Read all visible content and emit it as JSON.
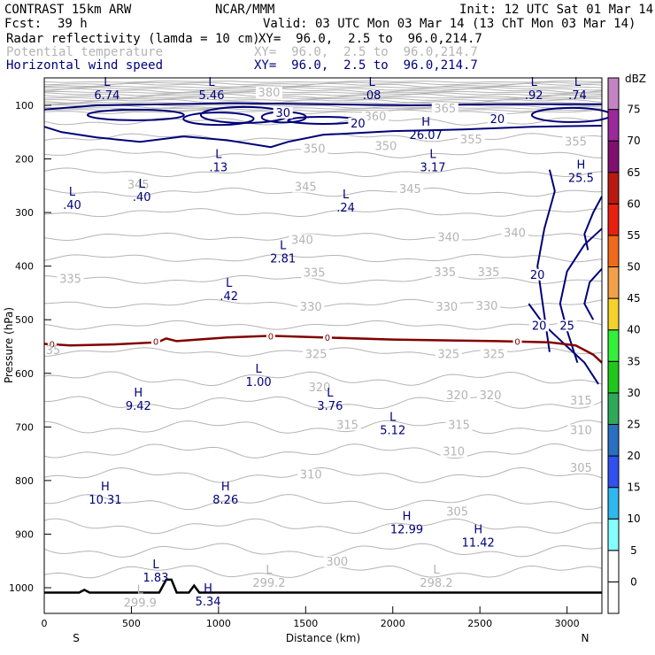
{
  "header": {
    "model": "CONTRAST 15km ARW",
    "org": "NCAR/MMM",
    "init": "Init: 12 UTC Sat 01 Mar 14",
    "fcst_label": "Fcst:",
    "fcst_value": "39 h",
    "valid": "Valid: 03 UTC Mon 03 Mar 14 (13 ChT Mon 03 Mar 14)",
    "fields": [
      {
        "name": "Radar reflectivity (lamda = 10 cm)",
        "xy": "XY=  96.0,  2.5 to  96.0,214.7"
      },
      {
        "name": "Potential temperature",
        "xy": "XY=  96.0,  2.5 to  96.0,214.7"
      },
      {
        "name": "Horizontal wind speed",
        "xy": "XY=  96.0,  2.5 to  96.0,214.7"
      }
    ]
  },
  "colors": {
    "theta": "#b4b4b4",
    "wind": "#00007a",
    "freezing": "#800000",
    "terrain": "#000000"
  },
  "chart_data": {
    "type": "cross-section",
    "xlabel": "Distance (km)",
    "ylabel": "Pressure (hPa)",
    "xlim": [
      0,
      3200
    ],
    "ylim": [
      1050,
      50
    ],
    "xticks": [
      0,
      500,
      1000,
      1500,
      2000,
      2500,
      3000
    ],
    "yticks": [
      100,
      200,
      300,
      400,
      500,
      600,
      700,
      800,
      900,
      1000
    ],
    "x_ends": {
      "left": "S",
      "right": "N"
    },
    "theta_levels": [
      {
        "label": "380",
        "x": 1290,
        "p": 80
      },
      {
        "label": "365",
        "x": 2300,
        "p": 110
      },
      {
        "label": "360",
        "x": 1900,
        "p": 125
      },
      {
        "label": "355",
        "x": 2450,
        "p": 168
      },
      {
        "label": "355",
        "x": 3050,
        "p": 172
      },
      {
        "label": "350",
        "x": 1550,
        "p": 185
      },
      {
        "label": "350",
        "x": 1960,
        "p": 180
      },
      {
        "label": "345",
        "x": 540,
        "p": 252
      },
      {
        "label": "345",
        "x": 1500,
        "p": 256
      },
      {
        "label": "345",
        "x": 2100,
        "p": 260
      },
      {
        "label": "340",
        "x": 1480,
        "p": 355
      },
      {
        "label": "340",
        "x": 2320,
        "p": 350
      },
      {
        "label": "340",
        "x": 2700,
        "p": 342
      },
      {
        "label": "335",
        "x": 150,
        "p": 428
      },
      {
        "label": "335",
        "x": 1550,
        "p": 416
      },
      {
        "label": "335",
        "x": 2300,
        "p": 415
      },
      {
        "label": "335",
        "x": 2550,
        "p": 415
      },
      {
        "label": "330",
        "x": 1530,
        "p": 480
      },
      {
        "label": "330",
        "x": 2310,
        "p": 480
      },
      {
        "label": "330",
        "x": 2540,
        "p": 478
      },
      {
        "label": "325",
        "x": 1560,
        "p": 568
      },
      {
        "label": "325",
        "x": 2320,
        "p": 568
      },
      {
        "label": "325",
        "x": 2580,
        "p": 568
      },
      {
        "label": "320",
        "x": 1580,
        "p": 630
      },
      {
        "label": "320",
        "x": 2370,
        "p": 645
      },
      {
        "label": "320",
        "x": 2560,
        "p": 645
      },
      {
        "label": "315",
        "x": 1740,
        "p": 700
      },
      {
        "label": "315",
        "x": 2380,
        "p": 700
      },
      {
        "label": "315",
        "x": 3080,
        "p": 655
      },
      {
        "label": "310",
        "x": 1530,
        "p": 793
      },
      {
        "label": "310",
        "x": 2350,
        "p": 750
      },
      {
        "label": "310",
        "x": 3080,
        "p": 710
      },
      {
        "label": "305",
        "x": 2370,
        "p": 862
      },
      {
        "label": "305",
        "x": 3080,
        "p": 780
      },
      {
        "label": "300",
        "x": 1680,
        "p": 955
      }
    ],
    "wind_labels": [
      {
        "label": "30",
        "x": 1370,
        "p": 118
      },
      {
        "label": "20",
        "x": 1800,
        "p": 138
      },
      {
        "label": "20",
        "x": 2600,
        "p": 130
      },
      {
        "label": "20",
        "x": 2830,
        "p": 420
      },
      {
        "label": "20",
        "x": 2840,
        "p": 515
      },
      {
        "label": "25",
        "x": 3000,
        "p": 515
      }
    ],
    "extrema": [
      {
        "kind": "L",
        "value": "6.74",
        "x": 360,
        "p": 65
      },
      {
        "kind": "L",
        "value": "5.46",
        "x": 960,
        "p": 65
      },
      {
        "kind": "L",
        "value": ".08",
        "x": 1880,
        "p": 65
      },
      {
        "kind": "L",
        "value": ".92",
        "x": 2810,
        "p": 65
      },
      {
        "kind": "L",
        "value": ".74",
        "x": 3060,
        "p": 65
      },
      {
        "kind": "H",
        "value": "26.07",
        "x": 2190,
        "p": 140
      },
      {
        "kind": "L",
        "value": ".13",
        "x": 1000,
        "p": 200
      },
      {
        "kind": "L",
        "value": "3.17",
        "x": 2230,
        "p": 200
      },
      {
        "kind": "H",
        "value": "25.5",
        "x": 3080,
        "p": 220
      },
      {
        "kind": "L",
        "value": ".40",
        "x": 160,
        "p": 270
      },
      {
        "kind": "L",
        "value": ".40",
        "x": 560,
        "p": 255
      },
      {
        "kind": "L",
        "value": ".24",
        "x": 1730,
        "p": 275
      },
      {
        "kind": "L",
        "value": "2.81",
        "x": 1370,
        "p": 370
      },
      {
        "kind": "L",
        "value": ".42",
        "x": 1060,
        "p": 440
      },
      {
        "kind": "L",
        "value": "1.00",
        "x": 1230,
        "p": 600
      },
      {
        "kind": "H",
        "value": "9.42",
        "x": 540,
        "p": 645
      },
      {
        "kind": "L",
        "value": "3.76",
        "x": 1640,
        "p": 645
      },
      {
        "kind": "L",
        "value": "5.12",
        "x": 2000,
        "p": 690
      },
      {
        "kind": "H",
        "value": "10.31",
        "x": 350,
        "p": 820
      },
      {
        "kind": "H",
        "value": "8.26",
        "x": 1040,
        "p": 820
      },
      {
        "kind": "H",
        "value": "12.99",
        "x": 2080,
        "p": 875
      },
      {
        "kind": "H",
        "value": "11.42",
        "x": 2490,
        "p": 900
      },
      {
        "kind": "L",
        "value": "1.83",
        "x": 640,
        "p": 965
      },
      {
        "kind": "H",
        "value": "5.34",
        "x": 940,
        "p": 1010
      },
      {
        "kind": "L",
        "value": "299.2",
        "x": 1290,
        "p": 975
      },
      {
        "kind": "L",
        "value": "298.2",
        "x": 2250,
        "p": 975
      },
      {
        "kind": "L",
        "value": "299.9",
        "x": 550,
        "p": 1012
      }
    ],
    "freezing_line": {
      "label": "0",
      "points": [
        [
          0,
          545
        ],
        [
          150,
          548
        ],
        [
          400,
          546
        ],
        [
          650,
          542
        ],
        [
          700,
          535
        ],
        [
          760,
          540
        ],
        [
          1050,
          533
        ],
        [
          1300,
          530
        ],
        [
          1600,
          533
        ],
        [
          2000,
          537
        ],
        [
          2600,
          540
        ],
        [
          2900,
          542
        ],
        [
          3050,
          548
        ],
        [
          3150,
          565
        ],
        [
          3200,
          580
        ]
      ],
      "label_positions": [
        [
          45,
          545
        ],
        [
          640,
          540
        ],
        [
          1300,
          530
        ],
        [
          1625,
          533
        ],
        [
          2715,
          540
        ]
      ],
      "edge_label": "35"
    },
    "wind_20_contour": [
      [
        [
          0,
          140
        ],
        [
          100,
          150
        ],
        [
          300,
          160
        ],
        [
          550,
          168
        ],
        [
          800,
          158
        ],
        [
          1050,
          165
        ],
        [
          1300,
          178
        ],
        [
          1400,
          168
        ],
        [
          1600,
          155
        ],
        [
          2000,
          148
        ],
        [
          2400,
          145
        ],
        [
          2800,
          140
        ],
        [
          3200,
          138
        ]
      ],
      [
        [
          0,
          108
        ],
        [
          300,
          100
        ],
        [
          700,
          98
        ],
        [
          1100,
          96
        ],
        [
          1600,
          98
        ],
        [
          2100,
          100
        ],
        [
          2600,
          98
        ],
        [
          3200,
          98
        ]
      ]
    ],
    "terrain_profile": [
      [
        0,
        1009
      ],
      [
        200,
        1009
      ],
      [
        230,
        1004
      ],
      [
        260,
        1009
      ],
      [
        660,
        1009
      ],
      [
        700,
        985
      ],
      [
        730,
        985
      ],
      [
        760,
        1009
      ],
      [
        830,
        1009
      ],
      [
        860,
        996
      ],
      [
        890,
        1009
      ],
      [
        3200,
        1009
      ]
    ],
    "colorbar": {
      "unit": "dBZ",
      "levels": [
        0,
        5,
        10,
        15,
        20,
        25,
        30,
        35,
        40,
        45,
        50,
        55,
        60,
        65,
        70,
        75
      ],
      "colors": [
        "#ffffff",
        "#85ffff",
        "#2fb8f0",
        "#3050f0",
        "#2a6fc0",
        "#2fa85a",
        "#22c71c",
        "#33f03a",
        "#f5d12c",
        "#f2a14a",
        "#f06a1a",
        "#e82012",
        "#b81a12",
        "#801070",
        "#9a2a9a",
        "#c484c4"
      ]
    }
  }
}
